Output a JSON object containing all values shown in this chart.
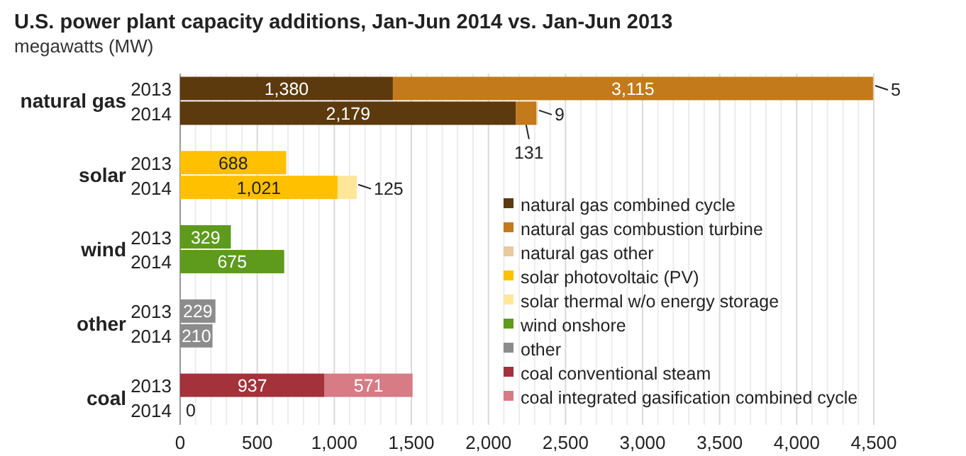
{
  "chart_data": {
    "type": "bar",
    "orientation": "horizontal",
    "stacked": true,
    "title": "U.S. power plant capacity additions, Jan-Jun 2014 vs. Jan-Jun 2013",
    "subtitle": "megawatts (MW)",
    "categories": [
      "2013",
      "2014",
      "2013",
      "2014",
      "2013",
      "2014",
      "2013",
      "2014",
      "2013",
      "2014"
    ],
    "annotations": [
      "natural gas",
      "solar",
      "wind",
      "other",
      "coal"
    ],
    "series": [
      {
        "name": "natural gas combined cycle",
        "color": "#5c3a0e",
        "values": [
          1380,
          2179,
          null,
          null,
          null,
          null,
          null,
          null,
          null,
          null
        ],
        "value_labels": [
          "1,380",
          "2,179",
          null,
          null,
          null,
          null,
          null,
          null,
          null,
          null
        ]
      },
      {
        "name": "natural gas combustion turbine",
        "color": "#c27a1a",
        "values": [
          3115,
          131,
          null,
          null,
          null,
          null,
          null,
          null,
          null,
          null
        ],
        "value_labels": [
          "3,115",
          "131",
          null,
          null,
          null,
          null,
          null,
          null,
          null,
          null
        ]
      },
      {
        "name": "natural gas other",
        "color": "#e8c9a0",
        "values": [
          5,
          9,
          null,
          null,
          null,
          null,
          null,
          null,
          null,
          null
        ],
        "value_labels": [
          "5",
          "9",
          null,
          null,
          null,
          null,
          null,
          null,
          null,
          null
        ]
      },
      {
        "name": "solar photovoltaic (PV)",
        "color": "#ffc000",
        "values": [
          null,
          null,
          688,
          1021,
          null,
          null,
          null,
          null,
          null,
          null
        ],
        "value_labels": [
          null,
          null,
          "688",
          "1,021",
          null,
          null,
          null,
          null,
          null,
          null
        ]
      },
      {
        "name": "solar thermal w/o energy storage",
        "color": "#ffe699",
        "values": [
          null,
          null,
          null,
          125,
          null,
          null,
          null,
          null,
          null,
          null
        ],
        "value_labels": [
          null,
          null,
          null,
          "125",
          null,
          null,
          null,
          null,
          null,
          null
        ]
      },
      {
        "name": "wind onshore",
        "color": "#5e9a1c",
        "values": [
          null,
          null,
          null,
          null,
          329,
          675,
          null,
          null,
          null,
          null
        ],
        "value_labels": [
          null,
          null,
          null,
          null,
          "329",
          "675",
          null,
          null,
          null,
          null
        ]
      },
      {
        "name": "other",
        "color": "#8c8c8c",
        "values": [
          null,
          null,
          null,
          null,
          null,
          null,
          229,
          210,
          null,
          null
        ],
        "value_labels": [
          null,
          null,
          null,
          null,
          null,
          null,
          "229",
          "210",
          null,
          null
        ]
      },
      {
        "name": "coal conventional steam",
        "color": "#a3323b",
        "values": [
          null,
          null,
          null,
          null,
          null,
          null,
          null,
          null,
          937,
          0
        ],
        "value_labels": [
          null,
          null,
          null,
          null,
          null,
          null,
          null,
          null,
          "937",
          "0"
        ]
      },
      {
        "name": "coal integrated gasification combined cycle",
        "color": "#d77b85",
        "values": [
          null,
          null,
          null,
          null,
          null,
          null,
          null,
          null,
          571,
          null
        ],
        "value_labels": [
          null,
          null,
          null,
          null,
          null,
          null,
          null,
          null,
          "571",
          null
        ]
      }
    ],
    "xlim": [
      0,
      4500
    ],
    "xticks": [
      0,
      {
        "value": 100,
        "label": null
      },
      {
        "value": 200,
        "label": null
      },
      {
        "value": 300,
        "label": null
      },
      {
        "value": 400,
        "label": null
      },
      {
        "value": 500,
        "label": "500"
      },
      {
        "value": 600,
        "label": null
      },
      {
        "value": 700,
        "label": null
      },
      {
        "value": 800,
        "label": null
      },
      {
        "value": 900,
        "label": null
      },
      {
        "value": 1000,
        "label": "1,000"
      },
      {
        "value": 1100,
        "label": null
      },
      {
        "value": 1200,
        "label": null
      },
      {
        "value": 1300,
        "label": null
      },
      {
        "value": 1400,
        "label": null
      },
      {
        "value": 1500,
        "label": "1,500"
      },
      {
        "value": 1600,
        "label": null
      },
      {
        "value": 1700,
        "label": null
      },
      {
        "value": 1800,
        "label": null
      },
      {
        "value": 1900,
        "label": null
      },
      {
        "value": 2000,
        "label": "2,000"
      },
      {
        "value": 2100,
        "label": null
      },
      {
        "value": 2200,
        "label": null
      },
      {
        "value": 2300,
        "label": null
      },
      {
        "value": 2400,
        "label": null
      },
      {
        "value": 2500,
        "label": "2,500"
      },
      {
        "value": 2600,
        "label": null
      },
      {
        "value": 2700,
        "label": null
      },
      {
        "value": 2800,
        "label": null
      },
      {
        "value": 2900,
        "label": null
      },
      {
        "value": 3000,
        "label": "3,000"
      },
      {
        "value": 3100,
        "label": null
      },
      {
        "value": 3200,
        "label": null
      },
      {
        "value": 3300,
        "label": null
      },
      {
        "value": 3400,
        "label": null
      },
      {
        "value": 3500,
        "label": "3,500"
      },
      {
        "value": 3600,
        "label": null
      },
      {
        "value": 3700,
        "label": null
      },
      {
        "value": 3800,
        "label": null
      },
      {
        "value": 3900,
        "label": null
      },
      {
        "value": 4000,
        "label": "4,000"
      },
      {
        "value": 4100,
        "label": null
      },
      {
        "value": 4200,
        "label": null
      },
      {
        "value": 4300,
        "label": null
      },
      {
        "value": 4400,
        "label": null
      },
      {
        "value": 4500,
        "label": "4,500"
      }
    ],
    "grid": "x",
    "legend": "right"
  }
}
